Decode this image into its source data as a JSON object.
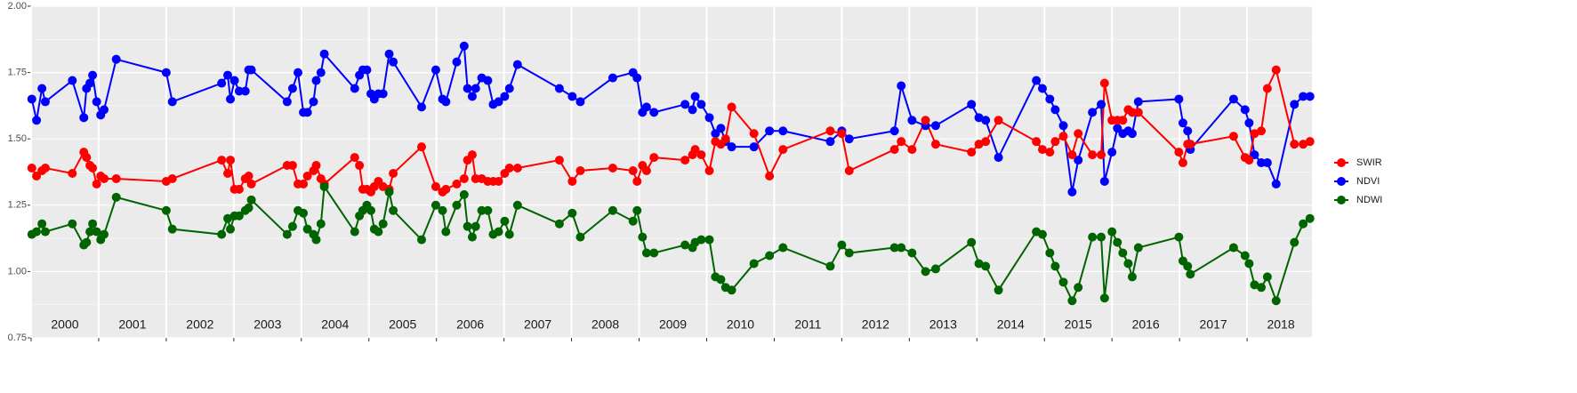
{
  "chart_data": {
    "type": "line",
    "x": [
      2000.01,
      2000.08,
      2000.16,
      2000.21,
      2000.61,
      2000.78,
      2000.82,
      2000.87,
      2000.91,
      2000.97,
      2001.03,
      2001.08,
      2001.26,
      2002.0,
      2002.09,
      2002.82,
      2002.91,
      2002.95,
      2003.01,
      2003.08,
      2003.17,
      2003.22,
      2003.26,
      2003.79,
      2003.87,
      2003.95,
      2004.03,
      2004.09,
      2004.18,
      2004.22,
      2004.29,
      2004.34,
      2004.79,
      2004.86,
      2004.91,
      2004.97,
      2005.03,
      2005.08,
      2005.14,
      2005.21,
      2005.3,
      2005.36,
      2005.78,
      2005.99,
      2006.09,
      2006.14,
      2006.3,
      2006.41,
      2006.46,
      2006.53,
      2006.58,
      2006.67,
      2006.76,
      2006.84,
      2006.92,
      2007.01,
      2007.08,
      2007.2,
      2007.82,
      2008.01,
      2008.13,
      2008.61,
      2008.91,
      2008.97,
      2009.05,
      2009.11,
      2009.22,
      2009.68,
      2009.79,
      2009.83,
      2009.92,
      2010.04,
      2010.13,
      2010.21,
      2010.28,
      2010.37,
      2010.7,
      2010.93,
      2011.13,
      2011.83,
      2012.0,
      2012.11,
      2012.78,
      2012.88,
      2013.04,
      2013.24,
      2013.39,
      2013.92,
      2014.03,
      2014.13,
      2014.32,
      2014.88,
      2014.97,
      2015.08,
      2015.16,
      2015.28,
      2015.41,
      2015.5,
      2015.71,
      2015.84,
      2015.89,
      2016.0,
      2016.08,
      2016.16,
      2016.24,
      2016.3,
      2016.39,
      2016.99,
      2017.05,
      2017.12,
      2017.16,
      2017.8,
      2017.97,
      2018.03,
      2018.11,
      2018.21,
      2018.3,
      2018.43,
      2018.7,
      2018.83,
      2018.93
    ],
    "series": [
      {
        "name": "SWIR",
        "color": "#ff0000",
        "values": [
          1.39,
          1.36,
          1.38,
          1.39,
          1.37,
          1.45,
          1.43,
          1.4,
          1.39,
          1.33,
          1.36,
          1.35,
          1.35,
          1.34,
          1.35,
          1.42,
          1.37,
          1.42,
          1.31,
          1.31,
          1.35,
          1.36,
          1.33,
          1.4,
          1.4,
          1.33,
          1.33,
          1.36,
          1.38,
          1.4,
          1.35,
          1.33,
          1.43,
          1.4,
          1.31,
          1.31,
          1.3,
          1.32,
          1.34,
          1.32,
          1.31,
          1.37,
          1.47,
          1.32,
          1.3,
          1.31,
          1.33,
          1.35,
          1.42,
          1.44,
          1.35,
          1.35,
          1.34,
          1.34,
          1.34,
          1.37,
          1.39,
          1.39,
          1.42,
          1.34,
          1.38,
          1.39,
          1.38,
          1.34,
          1.4,
          1.38,
          1.43,
          1.42,
          1.44,
          1.46,
          1.44,
          1.38,
          1.49,
          1.48,
          1.5,
          1.62,
          1.52,
          1.36,
          1.46,
          1.53,
          1.52,
          1.38,
          1.46,
          1.49,
          1.46,
          1.57,
          1.48,
          1.45,
          1.48,
          1.49,
          1.57,
          1.49,
          1.46,
          1.45,
          1.49,
          1.51,
          1.44,
          1.52,
          1.44,
          1.44,
          1.71,
          1.57,
          1.57,
          1.57,
          1.61,
          1.6,
          1.6,
          1.45,
          1.41,
          1.48,
          1.48,
          1.51,
          1.43,
          1.42,
          1.52,
          1.53,
          1.69,
          1.76,
          1.48,
          1.48,
          1.49
        ]
      },
      {
        "name": "NDVI",
        "color": "#0000ff",
        "values": [
          1.65,
          1.57,
          1.69,
          1.64,
          1.72,
          1.58,
          1.69,
          1.71,
          1.74,
          1.64,
          1.59,
          1.61,
          1.8,
          1.75,
          1.64,
          1.71,
          1.74,
          1.65,
          1.72,
          1.68,
          1.68,
          1.76,
          1.76,
          1.64,
          1.69,
          1.75,
          1.6,
          1.6,
          1.64,
          1.72,
          1.75,
          1.82,
          1.69,
          1.74,
          1.76,
          1.76,
          1.67,
          1.65,
          1.67,
          1.67,
          1.82,
          1.79,
          1.62,
          1.76,
          1.65,
          1.64,
          1.79,
          1.85,
          1.69,
          1.66,
          1.69,
          1.73,
          1.72,
          1.63,
          1.64,
          1.66,
          1.69,
          1.78,
          1.69,
          1.66,
          1.64,
          1.73,
          1.75,
          1.73,
          1.6,
          1.62,
          1.6,
          1.63,
          1.61,
          1.66,
          1.63,
          1.58,
          1.52,
          1.54,
          1.49,
          1.47,
          1.47,
          1.53,
          1.53,
          1.49,
          1.53,
          1.5,
          1.53,
          1.7,
          1.57,
          1.55,
          1.55,
          1.63,
          1.58,
          1.57,
          1.43,
          1.72,
          1.69,
          1.65,
          1.61,
          1.55,
          1.3,
          1.42,
          1.6,
          1.63,
          1.34,
          1.45,
          1.54,
          1.52,
          1.53,
          1.52,
          1.64,
          1.65,
          1.56,
          1.53,
          1.46,
          1.65,
          1.61,
          1.56,
          1.44,
          1.41,
          1.41,
          1.33,
          1.63,
          1.66,
          1.66
        ]
      },
      {
        "name": "NDWI",
        "color": "#006400",
        "values": [
          1.14,
          1.15,
          1.18,
          1.15,
          1.18,
          1.1,
          1.11,
          1.15,
          1.18,
          1.15,
          1.12,
          1.14,
          1.28,
          1.23,
          1.16,
          1.14,
          1.2,
          1.16,
          1.21,
          1.21,
          1.23,
          1.24,
          1.27,
          1.14,
          1.17,
          1.23,
          1.22,
          1.16,
          1.14,
          1.12,
          1.18,
          1.32,
          1.15,
          1.21,
          1.23,
          1.25,
          1.23,
          1.16,
          1.15,
          1.18,
          1.3,
          1.23,
          1.12,
          1.25,
          1.23,
          1.15,
          1.25,
          1.29,
          1.17,
          1.13,
          1.17,
          1.23,
          1.23,
          1.14,
          1.15,
          1.19,
          1.14,
          1.25,
          1.18,
          1.22,
          1.13,
          1.23,
          1.19,
          1.23,
          1.13,
          1.07,
          1.07,
          1.1,
          1.09,
          1.11,
          1.12,
          1.12,
          0.98,
          0.97,
          0.94,
          0.93,
          1.03,
          1.06,
          1.09,
          1.02,
          1.1,
          1.07,
          1.09,
          1.09,
          1.07,
          1.0,
          1.01,
          1.11,
          1.03,
          1.02,
          0.93,
          1.15,
          1.14,
          1.07,
          1.02,
          0.96,
          0.89,
          0.94,
          1.13,
          1.13,
          0.9,
          1.15,
          1.11,
          1.07,
          1.03,
          0.98,
          1.09,
          1.13,
          1.04,
          1.02,
          0.99,
          1.09,
          1.06,
          1.03,
          0.95,
          0.94,
          0.98,
          0.89,
          1.11,
          1.18,
          1.2
        ]
      }
    ],
    "xlim": [
      2000.0,
      2018.96
    ],
    "xticks": [
      {
        "value": 2000.5,
        "label": "2000"
      },
      {
        "value": 2001.5,
        "label": "2001"
      },
      {
        "value": 2002.5,
        "label": "2002"
      },
      {
        "value": 2003.5,
        "label": "2003"
      },
      {
        "value": 2004.5,
        "label": "2004"
      },
      {
        "value": 2005.5,
        "label": "2005"
      },
      {
        "value": 2006.5,
        "label": "2006"
      },
      {
        "value": 2007.5,
        "label": "2007"
      },
      {
        "value": 2008.5,
        "label": "2008"
      },
      {
        "value": 2009.5,
        "label": "2009"
      },
      {
        "value": 2010.5,
        "label": "2010"
      },
      {
        "value": 2011.5,
        "label": "2011"
      },
      {
        "value": 2012.5,
        "label": "2012"
      },
      {
        "value": 2013.5,
        "label": "2013"
      },
      {
        "value": 2014.5,
        "label": "2014"
      },
      {
        "value": 2015.5,
        "label": "2015"
      },
      {
        "value": 2016.5,
        "label": "2016"
      },
      {
        "value": 2017.5,
        "label": "2017"
      },
      {
        "value": 2018.5,
        "label": "2018"
      }
    ],
    "ylim": [
      0.75,
      2.0
    ],
    "yticks": [
      0.75,
      {
        "value": 1.0,
        "label": "1.00"
      },
      1.25,
      {
        "value": 1.5,
        "label": "1.50"
      },
      1.75,
      {
        "value": 2.0,
        "label": "2.00"
      }
    ],
    "grid": true,
    "legend": "right"
  }
}
